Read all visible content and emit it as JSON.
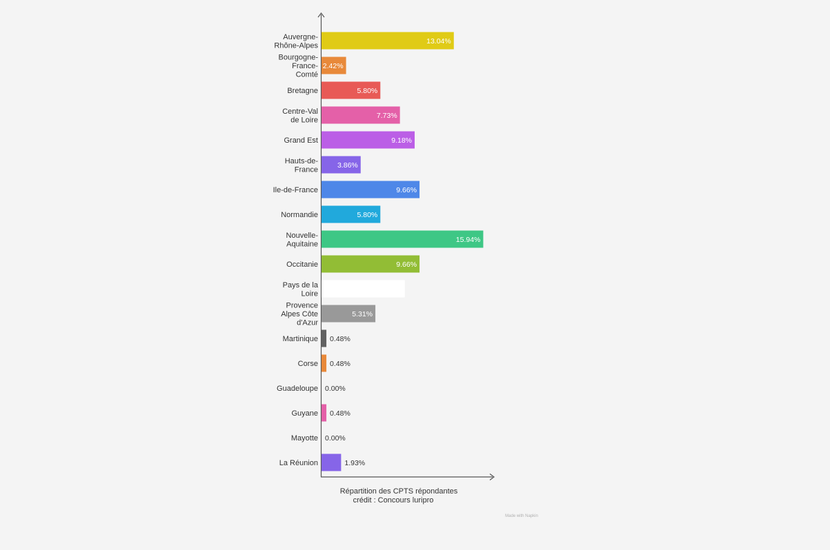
{
  "chart_data": {
    "type": "bar",
    "orientation": "horizontal",
    "categories": [
      "Auvergne-\nRhône-Alpes",
      "Bourgogne-\nFrance-\nComté",
      "Bretagne",
      "Centre-Val\nde Loire",
      "Grand Est",
      "Hauts-de-\nFrance",
      "Ile-de-France",
      "Normandie",
      "Nouvelle-\nAquitaine",
      "Occitanie",
      "Pays de la\nLoire",
      "Provence\nAlpes Côte\nd'Azur",
      "Martinique",
      "Corse",
      "Guadeloupe",
      "Guyane",
      "Mayotte",
      "La Réunion"
    ],
    "values": [
      13.04,
      2.42,
      5.8,
      7.73,
      9.18,
      3.86,
      9.66,
      5.8,
      15.94,
      9.66,
      8.21,
      5.31,
      0.48,
      0.48,
      0.0,
      0.48,
      0.0,
      1.93
    ],
    "value_labels": [
      "13.04%",
      "2.42%",
      "5.80%",
      "7.73%",
      "9.18%",
      "3.86%",
      "9.66%",
      "5.80%",
      "15.94%",
      "9.66%",
      "",
      "5.31%",
      "0.48%",
      "0.48%",
      "0.00%",
      "0.48%",
      "0.00%",
      "1.93%"
    ],
    "colors": [
      "#e0cb16",
      "#e8893a",
      "#e85a56",
      "#e460a8",
      "#bb5ee6",
      "#8665e8",
      "#4e87e8",
      "#21a9dc",
      "#3ec785",
      "#92bd35",
      "#ffffff",
      "#999999",
      "#616161",
      "#e8893a",
      "#8bc34a",
      "#e460a8",
      "#bb5ee6",
      "#8665e8"
    ],
    "label_colors": [
      "#ffffff",
      "#ffffff",
      "#ffffff",
      "#ffffff",
      "#ffffff",
      "#ffffff",
      "#ffffff",
      "#ffffff",
      "#ffffff",
      "#ffffff",
      "#ffffff",
      "#ffffff",
      "#333333",
      "#333333",
      "#333333",
      "#333333",
      "#333333",
      "#333333"
    ],
    "label_position": [
      "inside",
      "inside",
      "inside",
      "inside",
      "inside",
      "inside",
      "inside",
      "inside",
      "inside",
      "inside",
      "inside",
      "inside",
      "outside",
      "outside",
      "outside",
      "outside",
      "outside",
      "outside"
    ],
    "xlim": [
      0,
      17
    ],
    "grid": false,
    "caption_lines": [
      "Répartition des CPTS répondantes",
      "crédit : Concours luripro"
    ],
    "watermark": "Made with Napkin"
  }
}
